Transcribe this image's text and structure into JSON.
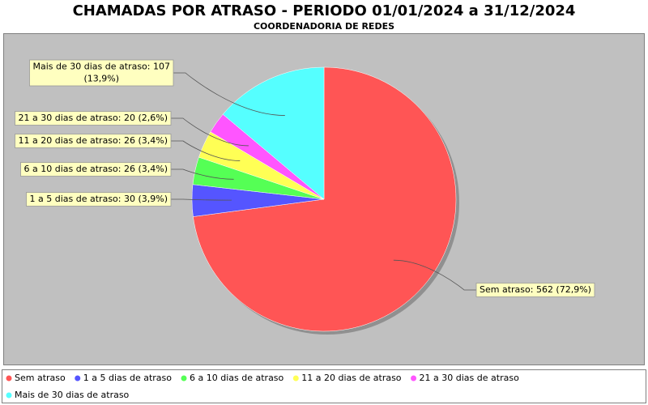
{
  "chart_data": {
    "type": "pie",
    "title": "CHAMADAS POR ATRASO - PERIODO 01/01/2024 a 31/12/2024",
    "subtitle": "COORDENADORIA DE REDES",
    "categories": [
      "Sem atraso",
      "1 a 5 dias de atraso",
      "6 a 10 dias de atraso",
      "11 a 20 dias de atraso",
      "21 a 30 dias de atraso",
      "Mais de 30 dias de atraso"
    ],
    "values": [
      562,
      30,
      26,
      26,
      20,
      107
    ],
    "value_labels": [
      "Sem atraso: 562 (72,9%)",
      "1 a 5 dias de atraso: 30 (3,9%)",
      "6 a 10 dias de atraso: 26 (3,4%)",
      "11 a 20 dias de atraso: 26 (3,4%)",
      "21 a 30 dias de atraso: 20 (2,6%)",
      "Mais de 30 dias de atraso: 107 (13,9%)"
    ],
    "colors": [
      "#ff5555",
      "#5555ff",
      "#55ff55",
      "#ffff55",
      "#ff55ff",
      "#55ffff"
    ],
    "legend": "bottom"
  }
}
